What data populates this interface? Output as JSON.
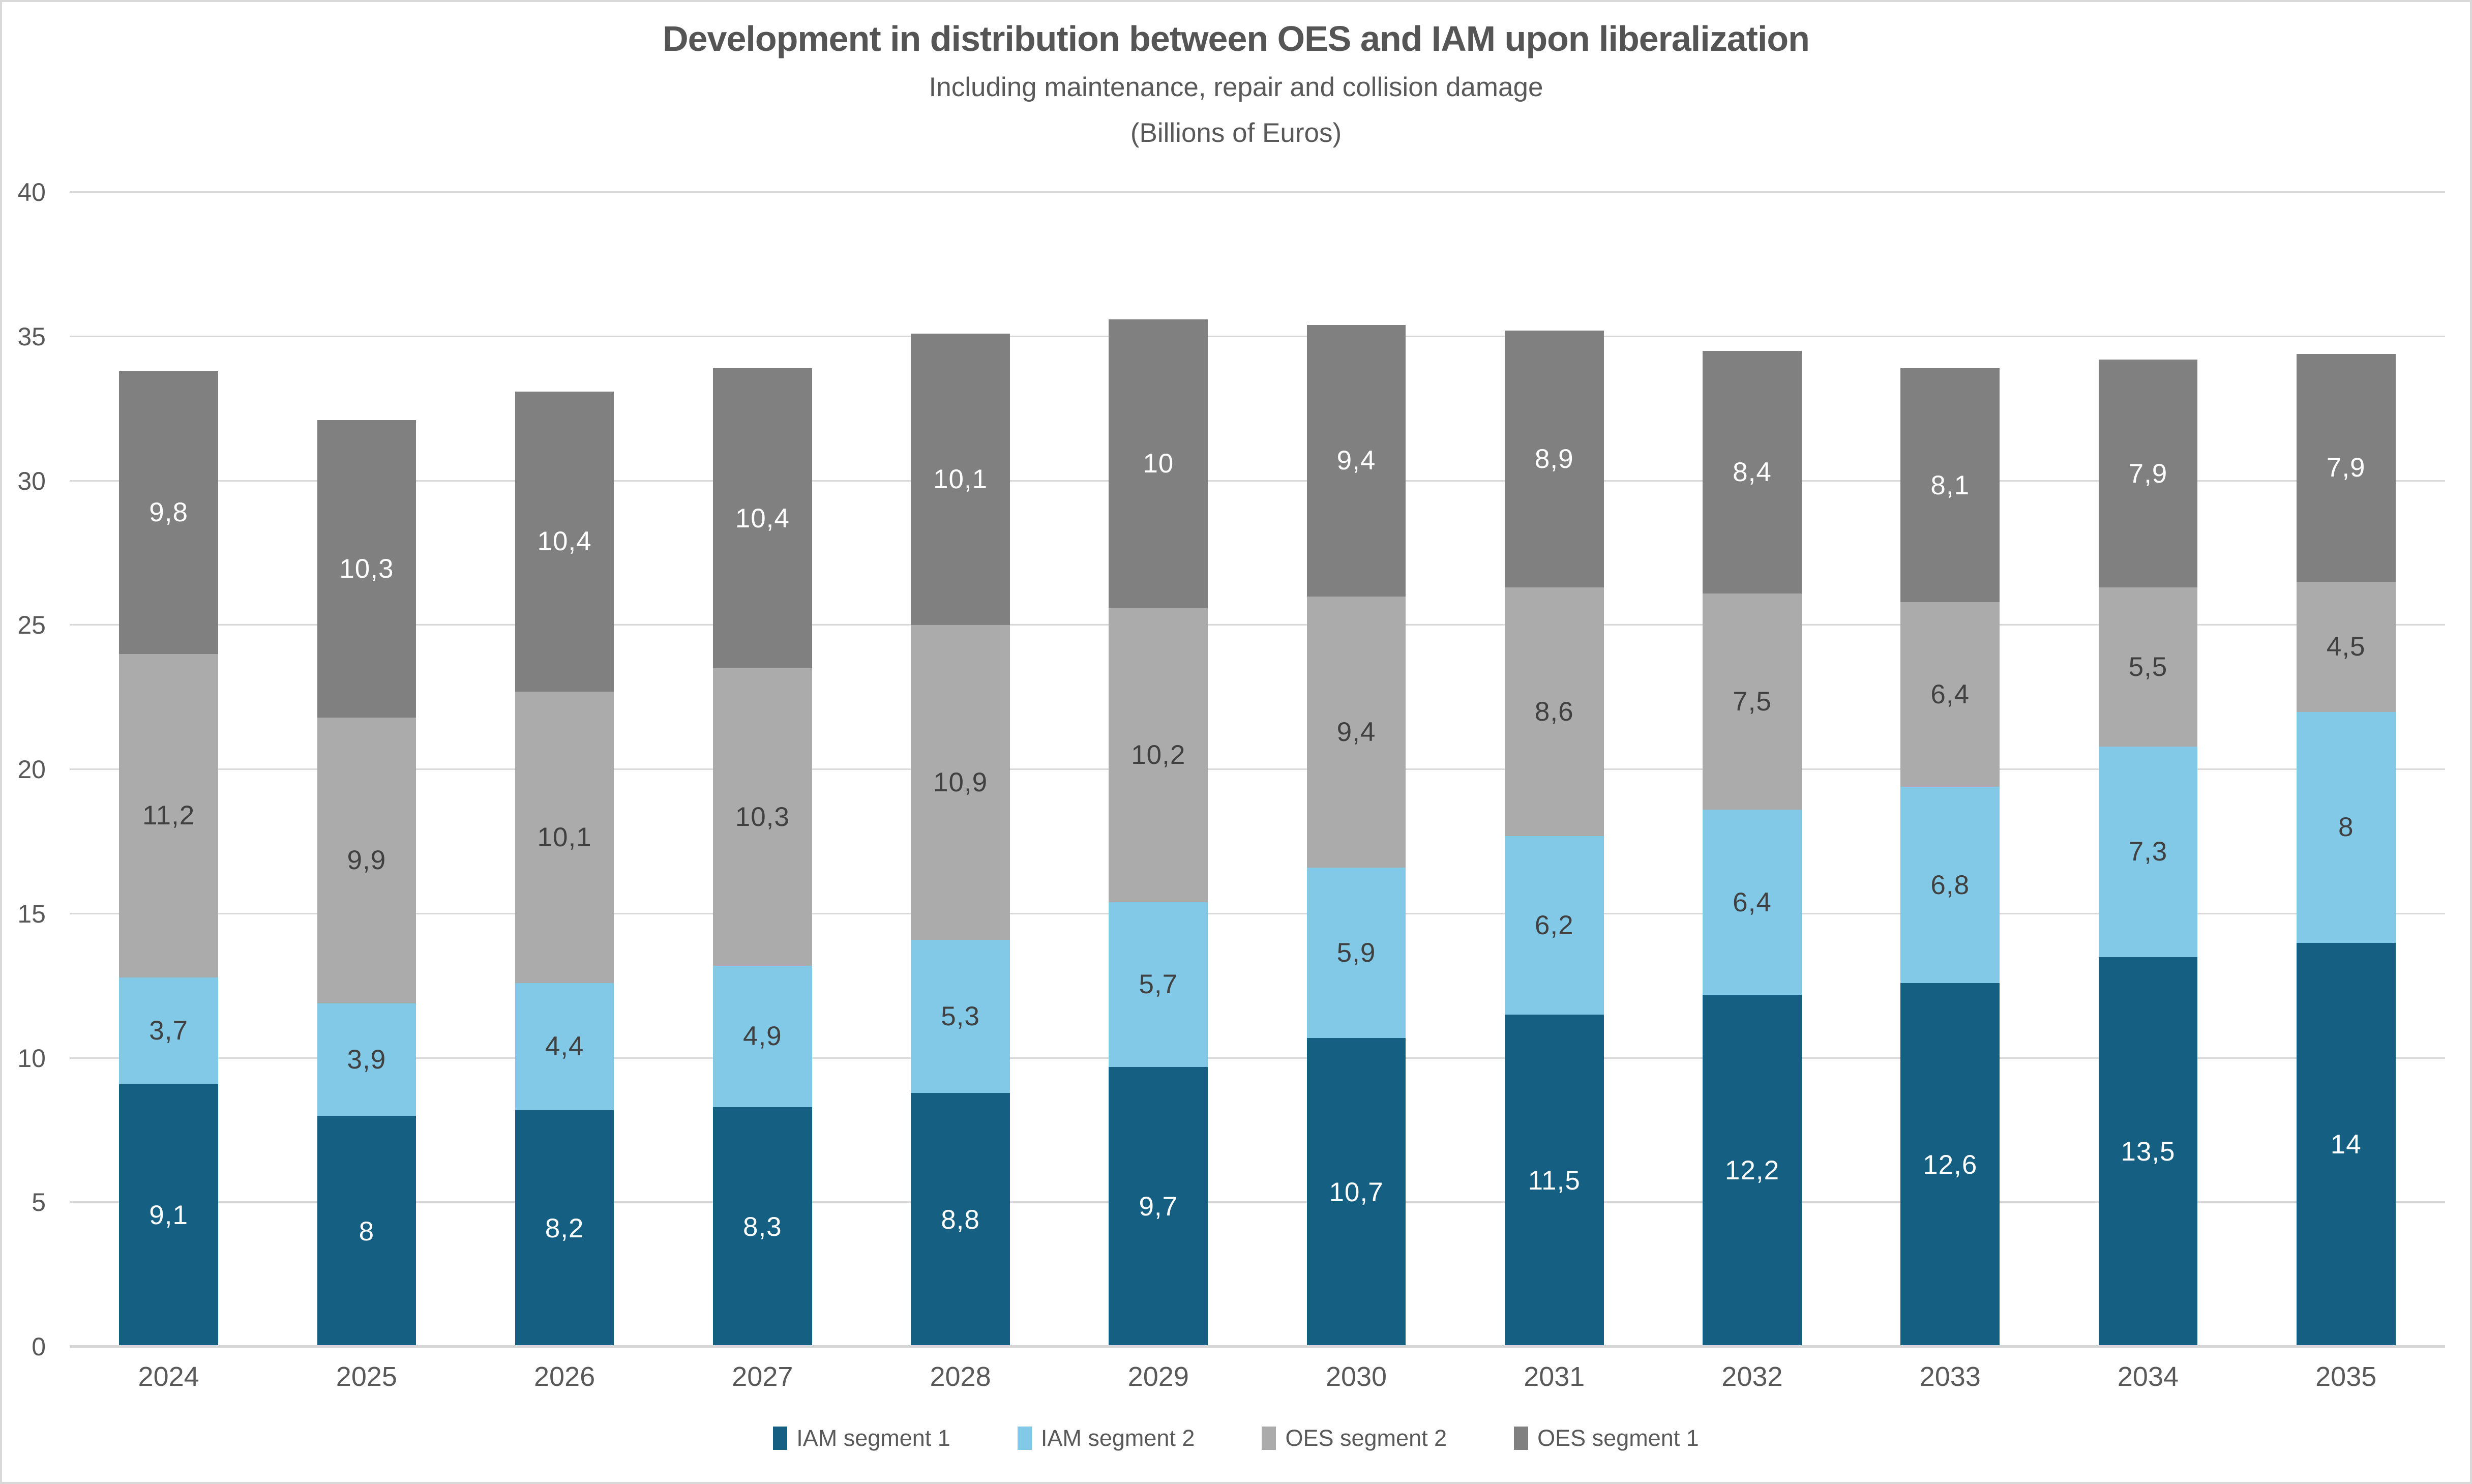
{
  "header": {
    "title": "Development in distribution between OES and IAM upon liberalization",
    "subtitle": "Including maintenance, repair and collision damage",
    "unit_line": "(Billions of Euros)"
  },
  "chart_data": {
    "type": "bar",
    "stacked": true,
    "title": "Development in distribution between OES and IAM upon liberalization",
    "subtitle": "Including maintenance, repair and collision damage",
    "unit": "Billions of Euros",
    "categories": [
      "2024",
      "2025",
      "2026",
      "2027",
      "2028",
      "2029",
      "2030",
      "2031",
      "2032",
      "2033",
      "2034",
      "2035"
    ],
    "series": [
      {
        "name": "IAM segment 1",
        "color": "#156082",
        "label_color": "#ffffff",
        "values": [
          9.1,
          8,
          8.2,
          8.3,
          8.8,
          9.7,
          10.7,
          11.5,
          12.2,
          12.6,
          13.5,
          14
        ],
        "labels": [
          "9,1",
          "8",
          "8,2",
          "8,3",
          "8,8",
          "9,7",
          "10,7",
          "11,5",
          "12,2",
          "12,6",
          "13,5",
          "14"
        ]
      },
      {
        "name": "IAM segment 2",
        "color": "#82c9e8",
        "label_color": "#404040",
        "values": [
          3.7,
          3.9,
          4.4,
          4.9,
          5.3,
          5.7,
          5.9,
          6.2,
          6.4,
          6.8,
          7.3,
          8
        ],
        "labels": [
          "3,7",
          "3,9",
          "4,4",
          "4,9",
          "5,3",
          "5,7",
          "5,9",
          "6,2",
          "6,4",
          "6,8",
          "7,3",
          "8"
        ]
      },
      {
        "name": "OES segment 2",
        "color": "#ababab",
        "label_color": "#404040",
        "values": [
          11.2,
          9.9,
          10.1,
          10.3,
          10.9,
          10.2,
          9.4,
          8.6,
          7.5,
          6.4,
          5.5,
          4.5
        ],
        "labels": [
          "11,2",
          "9,9",
          "10,1",
          "10,3",
          "10,9",
          "10,2",
          "9,4",
          "8,6",
          "7,5",
          "6,4",
          "5,5",
          "4,5"
        ]
      },
      {
        "name": "OES segment 1",
        "color": "#808080",
        "label_color": "#ffffff",
        "values": [
          9.8,
          10.3,
          10.4,
          10.4,
          10.1,
          10,
          9.4,
          8.9,
          8.4,
          8.1,
          7.9,
          7.9
        ],
        "labels": [
          "9,8",
          "10,3",
          "10,4",
          "10,4",
          "10,1",
          "10",
          "9,4",
          "8,9",
          "8,4",
          "8,1",
          "7,9",
          "7,9"
        ]
      }
    ],
    "y_axis": {
      "min": 0,
      "max": 40,
      "step": 5,
      "ticks": [
        "0",
        "5",
        "10",
        "15",
        "20",
        "25",
        "30",
        "35",
        "40"
      ]
    },
    "grid": true,
    "legend_position": "bottom",
    "legend_order": [
      "IAM segment 1",
      "IAM segment 2",
      "OES segment 2",
      "OES segment 1"
    ]
  },
  "colors": {
    "gridline": "#d9d9d9",
    "axis_text": "#595959",
    "title_text": "#555555",
    "background": "#ffffff",
    "border": "#d9d9d9"
  }
}
